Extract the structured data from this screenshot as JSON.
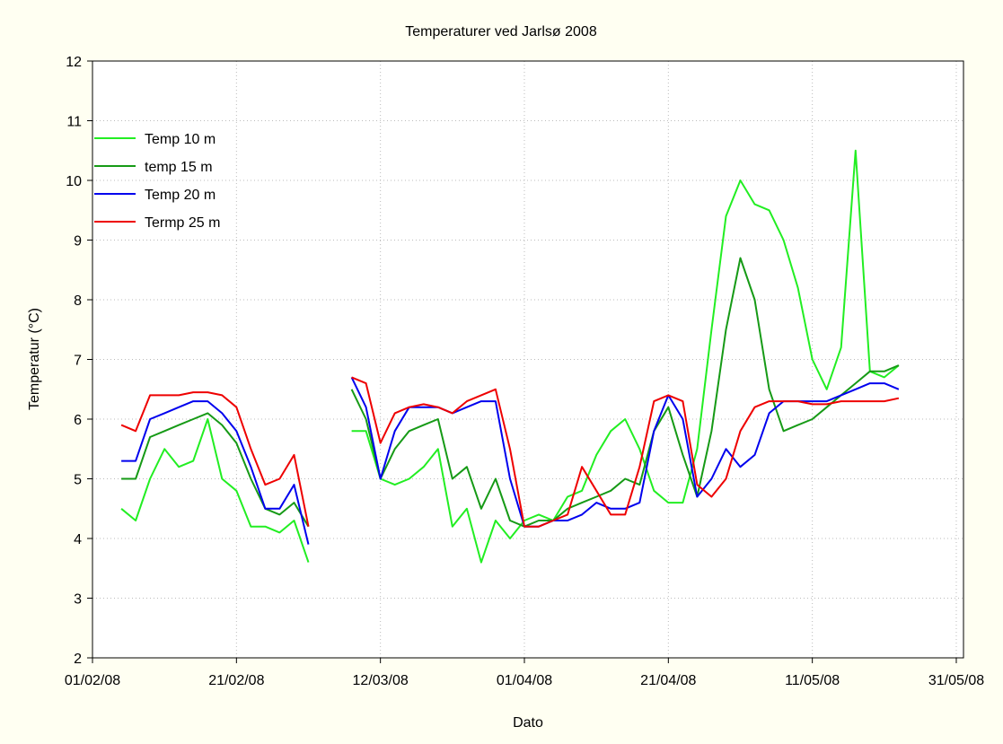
{
  "chart_data": {
    "type": "line",
    "title": "Temperaturer ved Jarlsø 2008",
    "xlabel": "Dato",
    "ylabel": "Temperatur (°C)",
    "x": [
      "2008-02-05",
      "2008-02-07",
      "2008-02-09",
      "2008-02-11",
      "2008-02-13",
      "2008-02-15",
      "2008-02-17",
      "2008-02-19",
      "2008-02-21",
      "2008-02-23",
      "2008-02-25",
      "2008-02-27",
      "2008-02-29",
      "2008-03-02",
      "2008-03-04",
      "2008-03-06",
      "2008-03-08",
      "2008-03-10",
      "2008-03-12",
      "2008-03-14",
      "2008-03-16",
      "2008-03-18",
      "2008-03-20",
      "2008-03-22",
      "2008-03-24",
      "2008-03-26",
      "2008-03-28",
      "2008-03-30",
      "2008-04-01",
      "2008-04-03",
      "2008-04-05",
      "2008-04-07",
      "2008-04-09",
      "2008-04-11",
      "2008-04-13",
      "2008-04-15",
      "2008-04-17",
      "2008-04-19",
      "2008-04-21",
      "2008-04-23",
      "2008-04-25",
      "2008-04-27",
      "2008-04-29",
      "2008-05-01",
      "2008-05-03",
      "2008-05-05",
      "2008-05-07",
      "2008-05-09",
      "2008-05-11",
      "2008-05-13",
      "2008-05-15",
      "2008-05-17",
      "2008-05-19",
      "2008-05-21",
      "2008-05-23"
    ],
    "series": [
      {
        "name": "Temp 10 m",
        "color": "#22ee22",
        "values": [
          4.5,
          4.3,
          5.0,
          5.5,
          5.2,
          5.3,
          6.0,
          5.0,
          4.8,
          4.2,
          4.2,
          4.1,
          4.3,
          3.6,
          null,
          null,
          5.8,
          5.8,
          5.0,
          4.9,
          5.0,
          5.2,
          5.5,
          4.2,
          4.5,
          3.6,
          4.3,
          4.0,
          4.3,
          4.4,
          4.3,
          4.7,
          4.8,
          5.4,
          5.8,
          6.0,
          5.5,
          4.8,
          4.6,
          4.6,
          5.5,
          7.5,
          9.4,
          10.0,
          9.6,
          9.5,
          9.0,
          8.2,
          7.0,
          6.5,
          7.2,
          10.5,
          6.8,
          6.7,
          6.9
        ]
      },
      {
        "name": "temp 15 m",
        "color": "#169a16",
        "values": [
          5.0,
          5.0,
          5.7,
          5.8,
          5.9,
          6.0,
          6.1,
          5.9,
          5.6,
          5.0,
          4.5,
          4.4,
          4.6,
          4.2,
          null,
          null,
          6.5,
          6.0,
          5.0,
          5.5,
          5.8,
          5.9,
          6.0,
          5.0,
          5.2,
          4.5,
          5.0,
          4.3,
          4.2,
          4.3,
          4.3,
          4.5,
          4.6,
          4.7,
          4.8,
          5.0,
          4.9,
          5.8,
          6.2,
          5.4,
          4.7,
          5.8,
          7.5,
          8.7,
          8.0,
          6.5,
          5.8,
          5.9,
          6.0,
          6.2,
          6.4,
          6.6,
          6.8,
          6.8,
          6.9
        ]
      },
      {
        "name": "Temp 20 m",
        "color": "#0000ee",
        "values": [
          5.3,
          5.3,
          6.0,
          6.1,
          6.2,
          6.3,
          6.3,
          6.1,
          5.8,
          5.2,
          4.5,
          4.5,
          4.9,
          3.9,
          null,
          null,
          6.7,
          6.2,
          5.0,
          5.8,
          6.2,
          6.2,
          6.2,
          6.1,
          6.2,
          6.3,
          6.3,
          5.0,
          4.2,
          4.2,
          4.3,
          4.3,
          4.4,
          4.6,
          4.5,
          4.5,
          4.6,
          5.8,
          6.4,
          6.0,
          4.7,
          5.0,
          5.5,
          5.2,
          5.4,
          6.1,
          6.3,
          6.3,
          6.3,
          6.3,
          6.4,
          6.5,
          6.6,
          6.6,
          6.5
        ]
      },
      {
        "name": "Termp 25 m",
        "color": "#ee0000",
        "values": [
          5.9,
          5.8,
          6.4,
          6.4,
          6.4,
          6.45,
          6.45,
          6.4,
          6.2,
          5.5,
          4.9,
          5.0,
          5.4,
          4.2,
          null,
          null,
          6.7,
          6.6,
          5.6,
          6.1,
          6.2,
          6.25,
          6.2,
          6.1,
          6.3,
          6.4,
          6.5,
          5.5,
          4.2,
          4.2,
          4.3,
          4.4,
          5.2,
          4.8,
          4.4,
          4.4,
          5.2,
          6.3,
          6.4,
          6.3,
          4.9,
          4.7,
          5.0,
          5.8,
          6.2,
          6.3,
          6.3,
          6.3,
          6.25,
          6.25,
          6.3,
          6.3,
          6.3,
          6.3,
          6.35
        ]
      }
    ],
    "xlim": [
      "2008-02-01",
      "2008-06-01"
    ],
    "xticks": [
      {
        "value": "2008-02-01",
        "label": "01/02/08"
      },
      {
        "value": "2008-02-21",
        "label": "21/02/08"
      },
      {
        "value": "2008-03-12",
        "label": "12/03/08"
      },
      {
        "value": "2008-04-01",
        "label": "01/04/08"
      },
      {
        "value": "2008-04-21",
        "label": "21/04/08"
      },
      {
        "value": "2008-05-11",
        "label": "11/05/08"
      },
      {
        "value": "2008-05-31",
        "label": "31/05/08"
      }
    ],
    "ylim": [
      2,
      12
    ],
    "yticks": [
      2,
      3,
      4,
      5,
      6,
      7,
      8,
      9,
      10,
      11,
      12
    ],
    "grid": true,
    "legend": "upper left"
  }
}
